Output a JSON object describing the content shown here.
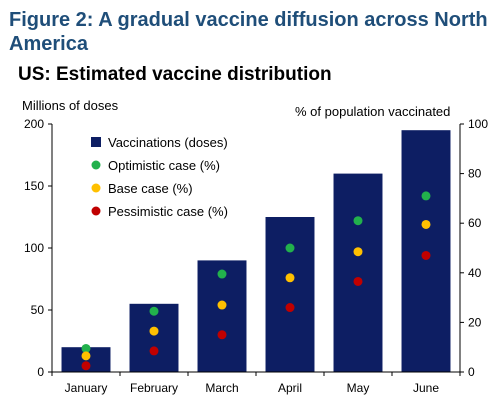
{
  "figure_title": "Figure 2: A gradual vaccine diffusion across North America",
  "chart_data": {
    "type": "bar",
    "title": "US: Estimated vaccine distribution",
    "ylabel": "Millions of doses",
    "y2label": "% of population vaccinated",
    "categories": [
      "January",
      "February",
      "March",
      "April",
      "May",
      "June"
    ],
    "ylim": [
      0,
      200
    ],
    "yticks": [
      0,
      50,
      100,
      150,
      200
    ],
    "y2lim": [
      0,
      100
    ],
    "y2ticks": [
      0,
      20,
      40,
      60,
      80,
      100
    ],
    "legend_position": "top-left",
    "grid": false,
    "series": [
      {
        "name": "Vaccinations (doses)",
        "kind": "bar",
        "axis": "left",
        "color": "#0d1e63",
        "values": [
          20,
          55,
          90,
          125,
          160,
          195
        ]
      },
      {
        "name": "Optimistic case (%)",
        "kind": "point",
        "axis": "right",
        "color": "#22b14c",
        "values": [
          9.5,
          24.5,
          39.5,
          50,
          61,
          71
        ]
      },
      {
        "name": "Base case (%)",
        "kind": "point",
        "axis": "right",
        "color": "#ffc000",
        "values": [
          6.5,
          16.5,
          27,
          38,
          48.5,
          59.5
        ]
      },
      {
        "name": "Pessimistic case (%)",
        "kind": "point",
        "axis": "right",
        "color": "#c00000",
        "values": [
          2.5,
          8.5,
          15,
          26,
          36.5,
          47
        ]
      }
    ]
  }
}
